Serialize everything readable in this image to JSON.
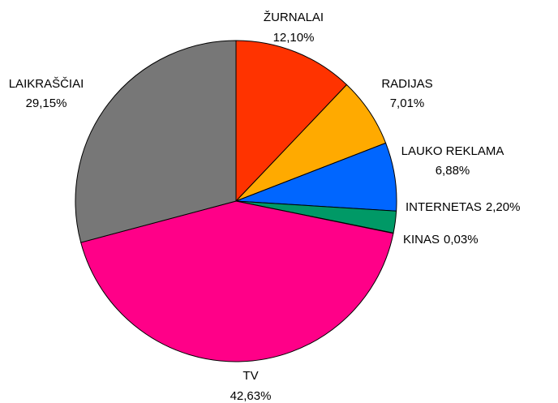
{
  "chart_data": {
    "type": "pie",
    "categories": [
      "ŽURNALAI",
      "RADIJAS",
      "LAUKO REKLAMA",
      "INTERNETAS",
      "KINAS",
      "TV",
      "LAIKRAŠČIAI"
    ],
    "values": [
      12.1,
      7.01,
      6.88,
      2.2,
      0.03,
      42.63,
      29.15
    ],
    "value_labels": [
      "12,10%",
      "7,01%",
      "6,88%",
      "2,20%",
      "0,03%",
      "42,63%",
      "29,15%"
    ],
    "colors": [
      "#ff3300",
      "#ffaa00",
      "#0066ff",
      "#009966",
      "#6666cc",
      "#ff0088",
      "#777777"
    ]
  }
}
